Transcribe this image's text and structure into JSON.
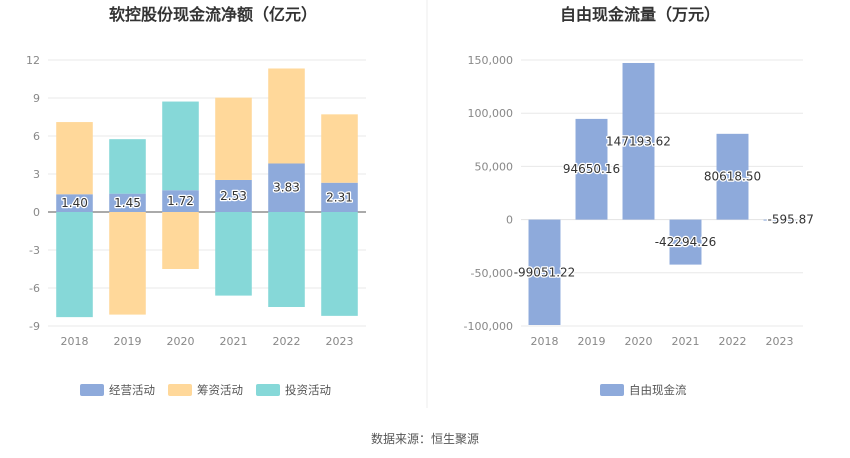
{
  "source_text": "数据来源：恒生聚源",
  "chart_data": [
    {
      "type": "bar",
      "stacked": true,
      "title": "软控股份现金流净额（亿元）",
      "categories": [
        "2018",
        "2019",
        "2020",
        "2021",
        "2022",
        "2023"
      ],
      "series": [
        {
          "name": "经营活动",
          "color": "#8eaadb",
          "values": [
            1.4,
            1.45,
            1.72,
            2.53,
            3.83,
            2.31
          ]
        },
        {
          "name": "筹资活动",
          "color": "#ffd89a",
          "values": [
            5.7,
            -8.1,
            -4.5,
            6.5,
            7.5,
            5.4
          ]
        },
        {
          "name": "投资活动",
          "color": "#86d8d8",
          "values": [
            -8.3,
            4.3,
            7.0,
            -6.6,
            -7.5,
            -8.2
          ]
        }
      ],
      "data_labels": [
        "1.40",
        "1.45",
        "1.72",
        "2.53",
        "3.83",
        "2.31"
      ],
      "yticks": [
        "12",
        "9",
        "6",
        "3",
        "0",
        "-3",
        "-6",
        "-9"
      ],
      "ylim": [
        -9,
        12
      ],
      "grid": true,
      "legend_position": "bottom"
    },
    {
      "type": "bar",
      "title": "自由现金流量（万元）",
      "categories": [
        "2018",
        "2019",
        "2020",
        "2021",
        "2022",
        "2023"
      ],
      "series": [
        {
          "name": "自由现金流",
          "color": "#8eaadb",
          "values": [
            -99051.22,
            94650.16,
            147193.62,
            -42294.26,
            80618.5,
            -595.87
          ]
        }
      ],
      "data_labels": [
        "-99051.22",
        "94650.16",
        "147193.62",
        "-42294.26",
        "80618.50",
        "-595.87"
      ],
      "yticks": [
        "150,000",
        "100,000",
        "50,000",
        "0",
        "-50,000",
        "-100,000"
      ],
      "ylim": [
        -100000,
        150000
      ],
      "grid": true,
      "legend_position": "bottom"
    }
  ]
}
